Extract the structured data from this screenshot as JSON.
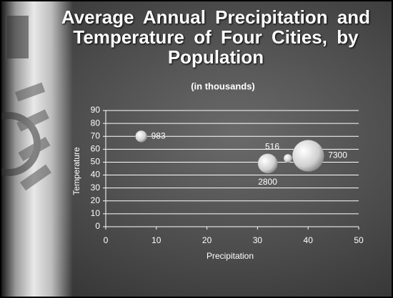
{
  "chart_data": {
    "type": "bubble",
    "title": "Average Annual Precipitation and Temperature of Four Cities, by Population",
    "subtitle": "(in thousands)",
    "x_label": "Precipitation",
    "y_label": "Temperature",
    "x": [
      7,
      32,
      36,
      40
    ],
    "values": [
      70,
      49,
      53,
      55
    ],
    "sizes": [
      983,
      2800,
      516,
      7300
    ],
    "color": "#e0e0e0",
    "xlim": [
      0,
      50
    ],
    "xticks": [
      0,
      10,
      20,
      30,
      40,
      50
    ],
    "ylim": [
      0,
      90
    ],
    "yticks": [
      0,
      10,
      20,
      30,
      40,
      50,
      60,
      70,
      80,
      90
    ],
    "grid": true
  }
}
